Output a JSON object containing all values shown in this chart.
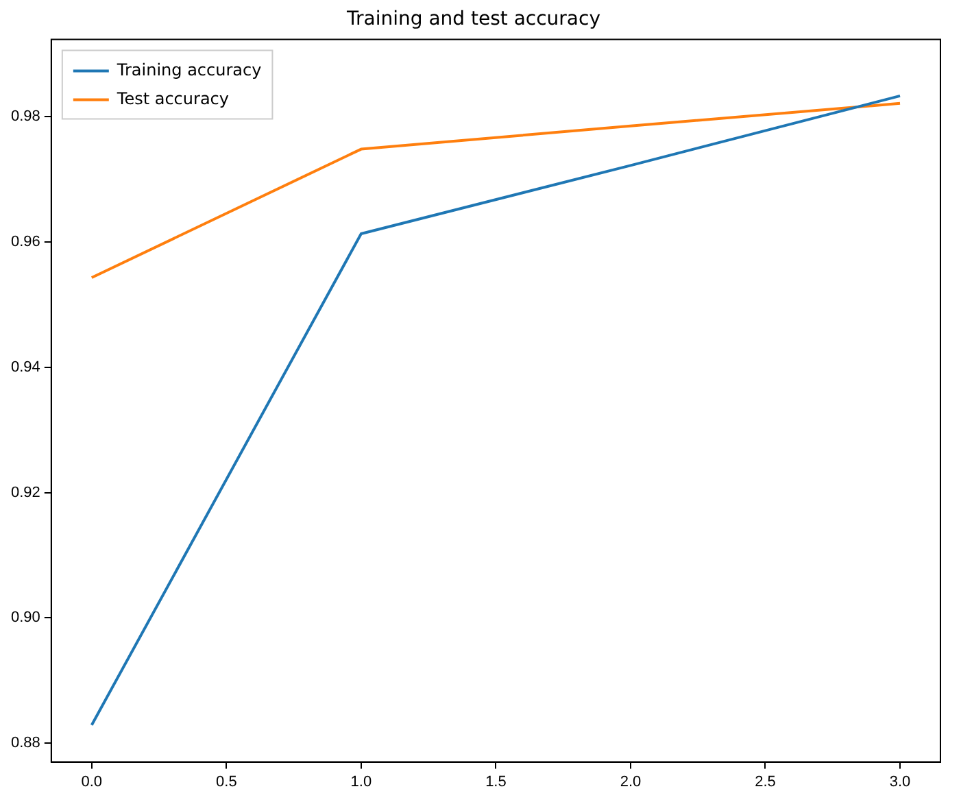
{
  "chart_data": {
    "type": "line",
    "title": "Training and test accuracy",
    "x": [
      0,
      1,
      2,
      3
    ],
    "series": [
      {
        "name": "Training accuracy",
        "color": "#1f77b4",
        "values": [
          0.8829,
          0.9613,
          0.9722,
          0.9833
        ]
      },
      {
        "name": "Test accuracy",
        "color": "#ff7f0e",
        "values": [
          0.9543,
          0.9748,
          0.9785,
          0.9821
        ]
      }
    ],
    "xlim": [
      -0.15,
      3.15
    ],
    "xticks": [
      {
        "value": 0,
        "label": "0.0"
      },
      {
        "value": 0.5,
        "label": "0.5"
      },
      {
        "value": 1,
        "label": "1.0"
      },
      {
        "value": 1.5,
        "label": "1.5"
      },
      {
        "value": 2,
        "label": "2.0"
      },
      {
        "value": 2.5,
        "label": "2.5"
      },
      {
        "value": 3,
        "label": "3.0"
      }
    ],
    "ylim": [
      0.877,
      0.9923
    ],
    "yticks": [
      {
        "value": 0.88,
        "label": "0.88"
      },
      {
        "value": 0.9,
        "label": "0.90"
      },
      {
        "value": 0.92,
        "label": "0.92"
      },
      {
        "value": 0.94,
        "label": "0.94"
      },
      {
        "value": 0.96,
        "label": "0.96"
      },
      {
        "value": 0.98,
        "label": "0.98"
      }
    ],
    "legend": "top left",
    "grid": false,
    "marker": "none",
    "line_style": "solid"
  }
}
